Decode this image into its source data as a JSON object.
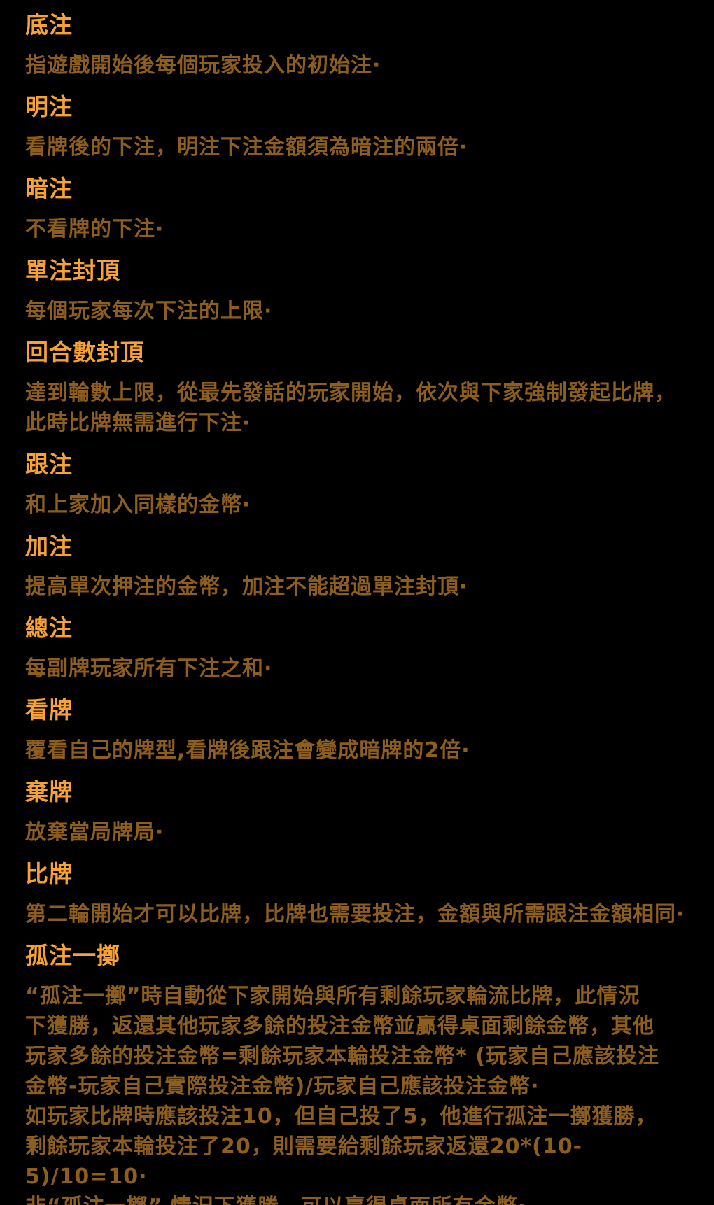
{
  "page": {
    "background_color": "#000000",
    "heading_color": "#F7A233",
    "body_color": "#8E5E1F",
    "description": "card-game betting terms glossary"
  },
  "sections": [
    {
      "title": "底注",
      "lines": [
        "指遊戲開始後每個玩家投入的初始注·"
      ]
    },
    {
      "title": "明注",
      "lines": [
        "看牌後的下注，明注下注金額須為暗注的兩倍·"
      ]
    },
    {
      "title": "暗注",
      "lines": [
        "不看牌的下注·"
      ]
    },
    {
      "title": "單注封頂",
      "lines": [
        "每個玩家每次下注的上限·"
      ]
    },
    {
      "title": "回合數封頂",
      "lines": [
        "達到輪數上限，從最先發話的玩家開始，依次與下家強制發起比牌，",
        "此時比牌無需進行下注·"
      ]
    },
    {
      "title": "跟注",
      "lines": [
        "和上家加入同樣的金幣·"
      ]
    },
    {
      "title": "加注",
      "lines": [
        "提高單次押注的金幣，加注不能超過單注封頂·"
      ]
    },
    {
      "title": "總注",
      "lines": [
        "每副牌玩家所有下注之和·"
      ]
    },
    {
      "title": "看牌",
      "lines": [
        "覆看自己的牌型,看牌後跟注會變成暗牌的2倍·"
      ]
    },
    {
      "title": "棄牌",
      "lines": [
        "放棄當局牌局·"
      ]
    },
    {
      "title": "比牌",
      "lines": [
        "第二輪開始才可以比牌，比牌也需要投注，金額與所需跟注金額相同·"
      ]
    },
    {
      "title": "孤注一擲",
      "lines": [
        "“孤注一擲”時自動從下家開始與所有剩餘玩家輪流比牌，此情況",
        "下獲勝，返還其他玩家多餘的投注金幣並贏得桌面剩餘金幣，其他",
        "玩家多餘的投注金幣=剩餘玩家本輪投注金幣* (玩家自己應該投注",
        "金幣-玩家自己實際投注金幣)/玩家自己應該投注金幣·",
        "如玩家比牌時應該投注10，但自己投了5，他進行孤注一擲獲勝，",
        "剩餘玩家本輪投注了20，則需要給剩餘玩家返還20*(10-5)/10=10·",
        "非“孤注一擲” 情況下獲勝，可以贏得桌面所有金幣·"
      ]
    }
  ]
}
